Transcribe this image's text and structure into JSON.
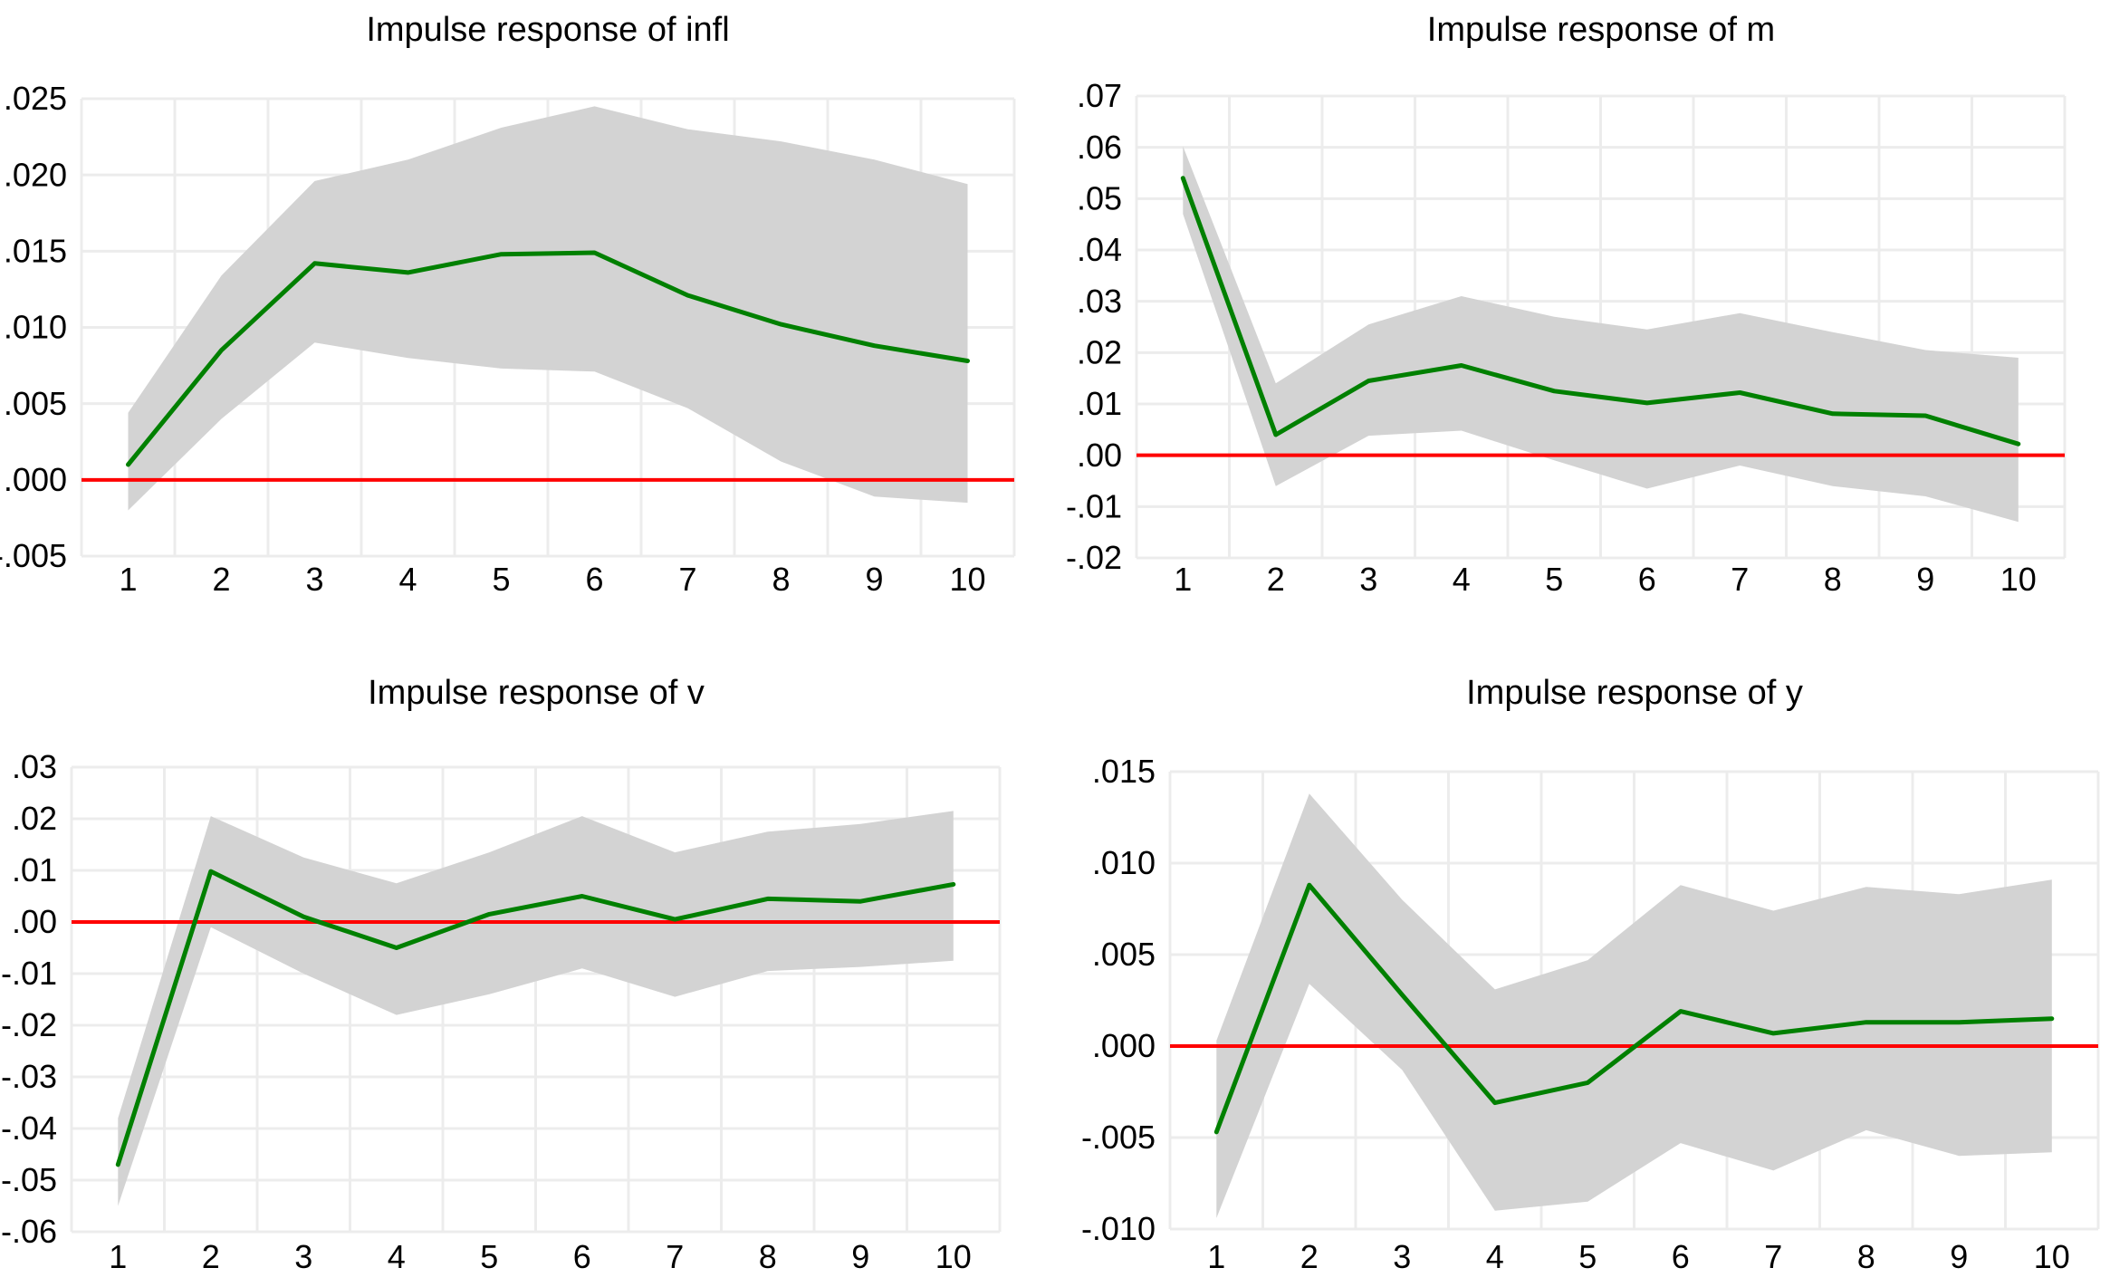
{
  "colors": {
    "background": "#ffffff",
    "line": "#008000",
    "band": "#d3d3d3",
    "zero_line": "#ff0000",
    "grid": "#ececec",
    "text": "#000000"
  },
  "x_tick_labels": [
    "1",
    "2",
    "3",
    "4",
    "5",
    "6",
    "7",
    "8",
    "9",
    "10"
  ],
  "chart_data": [
    {
      "type": "line",
      "title": "Impulse response of infl",
      "categories": [
        1,
        2,
        3,
        4,
        5,
        6,
        7,
        8,
        9,
        10
      ],
      "ylim": [
        -0.005,
        0.025
      ],
      "grid": true,
      "legend": "none",
      "zero_line": 0,
      "yticks": [
        {
          "label": ".025",
          "value": 0.025
        },
        {
          "label": ".020",
          "value": 0.02
        },
        {
          "label": ".015",
          "value": 0.015
        },
        {
          "label": ".010",
          "value": 0.01
        },
        {
          "label": ".005",
          "value": 0.005
        },
        {
          "label": ".000",
          "value": 0.0
        },
        {
          "label": "-.005",
          "value": -0.005
        }
      ],
      "series": [
        {
          "name": "impulse response",
          "role": "line",
          "values": [
            0.001,
            0.0085,
            0.0142,
            0.0136,
            0.0148,
            0.0149,
            0.0121,
            0.0102,
            0.0088,
            0.0078
          ]
        },
        {
          "name": "confidence band upper",
          "role": "band-upper",
          "values": [
            0.0044,
            0.0134,
            0.0196,
            0.021,
            0.0231,
            0.0245,
            0.023,
            0.0222,
            0.021,
            0.0194
          ]
        },
        {
          "name": "confidence band lower",
          "role": "band-lower",
          "values": [
            -0.002,
            0.004,
            0.009,
            0.008,
            0.0073,
            0.0071,
            0.0047,
            0.0012,
            -0.0011,
            -0.0015
          ]
        }
      ]
    },
    {
      "type": "line",
      "title": "Impulse response of m",
      "categories": [
        1,
        2,
        3,
        4,
        5,
        6,
        7,
        8,
        9,
        10
      ],
      "ylim": [
        -0.02,
        0.07
      ],
      "grid": true,
      "legend": "none",
      "zero_line": 0,
      "yticks": [
        {
          "label": ".07",
          "value": 0.07
        },
        {
          "label": ".06",
          "value": 0.06
        },
        {
          "label": ".05",
          "value": 0.05
        },
        {
          "label": ".04",
          "value": 0.04
        },
        {
          "label": ".03",
          "value": 0.03
        },
        {
          "label": ".02",
          "value": 0.02
        },
        {
          "label": ".01",
          "value": 0.01
        },
        {
          "label": ".00",
          "value": 0.0
        },
        {
          "label": "-.01",
          "value": -0.01
        },
        {
          "label": "-.02",
          "value": -0.02
        }
      ],
      "series": [
        {
          "name": "impulse response",
          "role": "line",
          "values": [
            0.054,
            0.004,
            0.0145,
            0.0175,
            0.0125,
            0.0102,
            0.0122,
            0.0081,
            0.0077,
            0.0022
          ]
        },
        {
          "name": "confidence band upper",
          "role": "band-upper",
          "values": [
            0.0602,
            0.014,
            0.0255,
            0.031,
            0.027,
            0.0245,
            0.0277,
            0.024,
            0.0205,
            0.019
          ]
        },
        {
          "name": "confidence band lower",
          "role": "band-lower",
          "values": [
            0.047,
            -0.006,
            0.0038,
            0.0048,
            -0.001,
            -0.0065,
            -0.002,
            -0.006,
            -0.008,
            -0.013
          ]
        }
      ]
    },
    {
      "type": "line",
      "title": "Impulse response of v",
      "categories": [
        1,
        2,
        3,
        4,
        5,
        6,
        7,
        8,
        9,
        10
      ],
      "ylim": [
        -0.06,
        0.03
      ],
      "grid": true,
      "legend": "none",
      "zero_line": 0,
      "yticks": [
        {
          "label": ".03",
          "value": 0.03
        },
        {
          "label": ".02",
          "value": 0.02
        },
        {
          "label": ".01",
          "value": 0.01
        },
        {
          "label": ".00",
          "value": 0.0
        },
        {
          "label": "-.01",
          "value": -0.01
        },
        {
          "label": "-.02",
          "value": -0.02
        },
        {
          "label": "-.03",
          "value": -0.03
        },
        {
          "label": "-.04",
          "value": -0.04
        },
        {
          "label": "-.05",
          "value": -0.05
        },
        {
          "label": "-.06",
          "value": -0.06
        }
      ],
      "series": [
        {
          "name": "impulse response",
          "role": "line",
          "values": [
            -0.047,
            0.0098,
            0.001,
            -0.005,
            0.0015,
            0.005,
            0.0005,
            0.0045,
            0.004,
            0.0073
          ]
        },
        {
          "name": "confidence band upper",
          "role": "band-upper",
          "values": [
            -0.038,
            0.0205,
            0.0125,
            0.0075,
            0.0135,
            0.0205,
            0.0135,
            0.0175,
            0.019,
            0.0215
          ]
        },
        {
          "name": "confidence band lower",
          "role": "band-lower",
          "values": [
            -0.055,
            -0.001,
            -0.01,
            -0.018,
            -0.014,
            -0.009,
            -0.0145,
            -0.0095,
            -0.0087,
            -0.0075
          ]
        }
      ]
    },
    {
      "type": "line",
      "title": "Impulse response of y",
      "categories": [
        1,
        2,
        3,
        4,
        5,
        6,
        7,
        8,
        9,
        10
      ],
      "ylim": [
        -0.01,
        0.015
      ],
      "grid": true,
      "legend": "none",
      "zero_line": 0,
      "yticks": [
        {
          "label": ".015",
          "value": 0.015
        },
        {
          "label": ".010",
          "value": 0.01
        },
        {
          "label": ".005",
          "value": 0.005
        },
        {
          "label": ".000",
          "value": 0.0
        },
        {
          "label": "-.005",
          "value": -0.005
        },
        {
          "label": "-.010",
          "value": -0.01
        }
      ],
      "series": [
        {
          "name": "impulse response",
          "role": "line",
          "values": [
            -0.0047,
            0.0088,
            0.0028,
            -0.0031,
            -0.002,
            0.0019,
            0.0007,
            0.0013,
            0.0013,
            0.0015
          ]
        },
        {
          "name": "confidence band upper",
          "role": "band-upper",
          "values": [
            0.0003,
            0.0138,
            0.008,
            0.0031,
            0.0047,
            0.0088,
            0.0074,
            0.0087,
            0.0083,
            0.0091
          ]
        },
        {
          "name": "confidence band lower",
          "role": "band-lower",
          "values": [
            -0.0094,
            0.0034,
            -0.0013,
            -0.009,
            -0.0085,
            -0.0053,
            -0.0068,
            -0.0046,
            -0.006,
            -0.0058
          ]
        }
      ]
    }
  ]
}
